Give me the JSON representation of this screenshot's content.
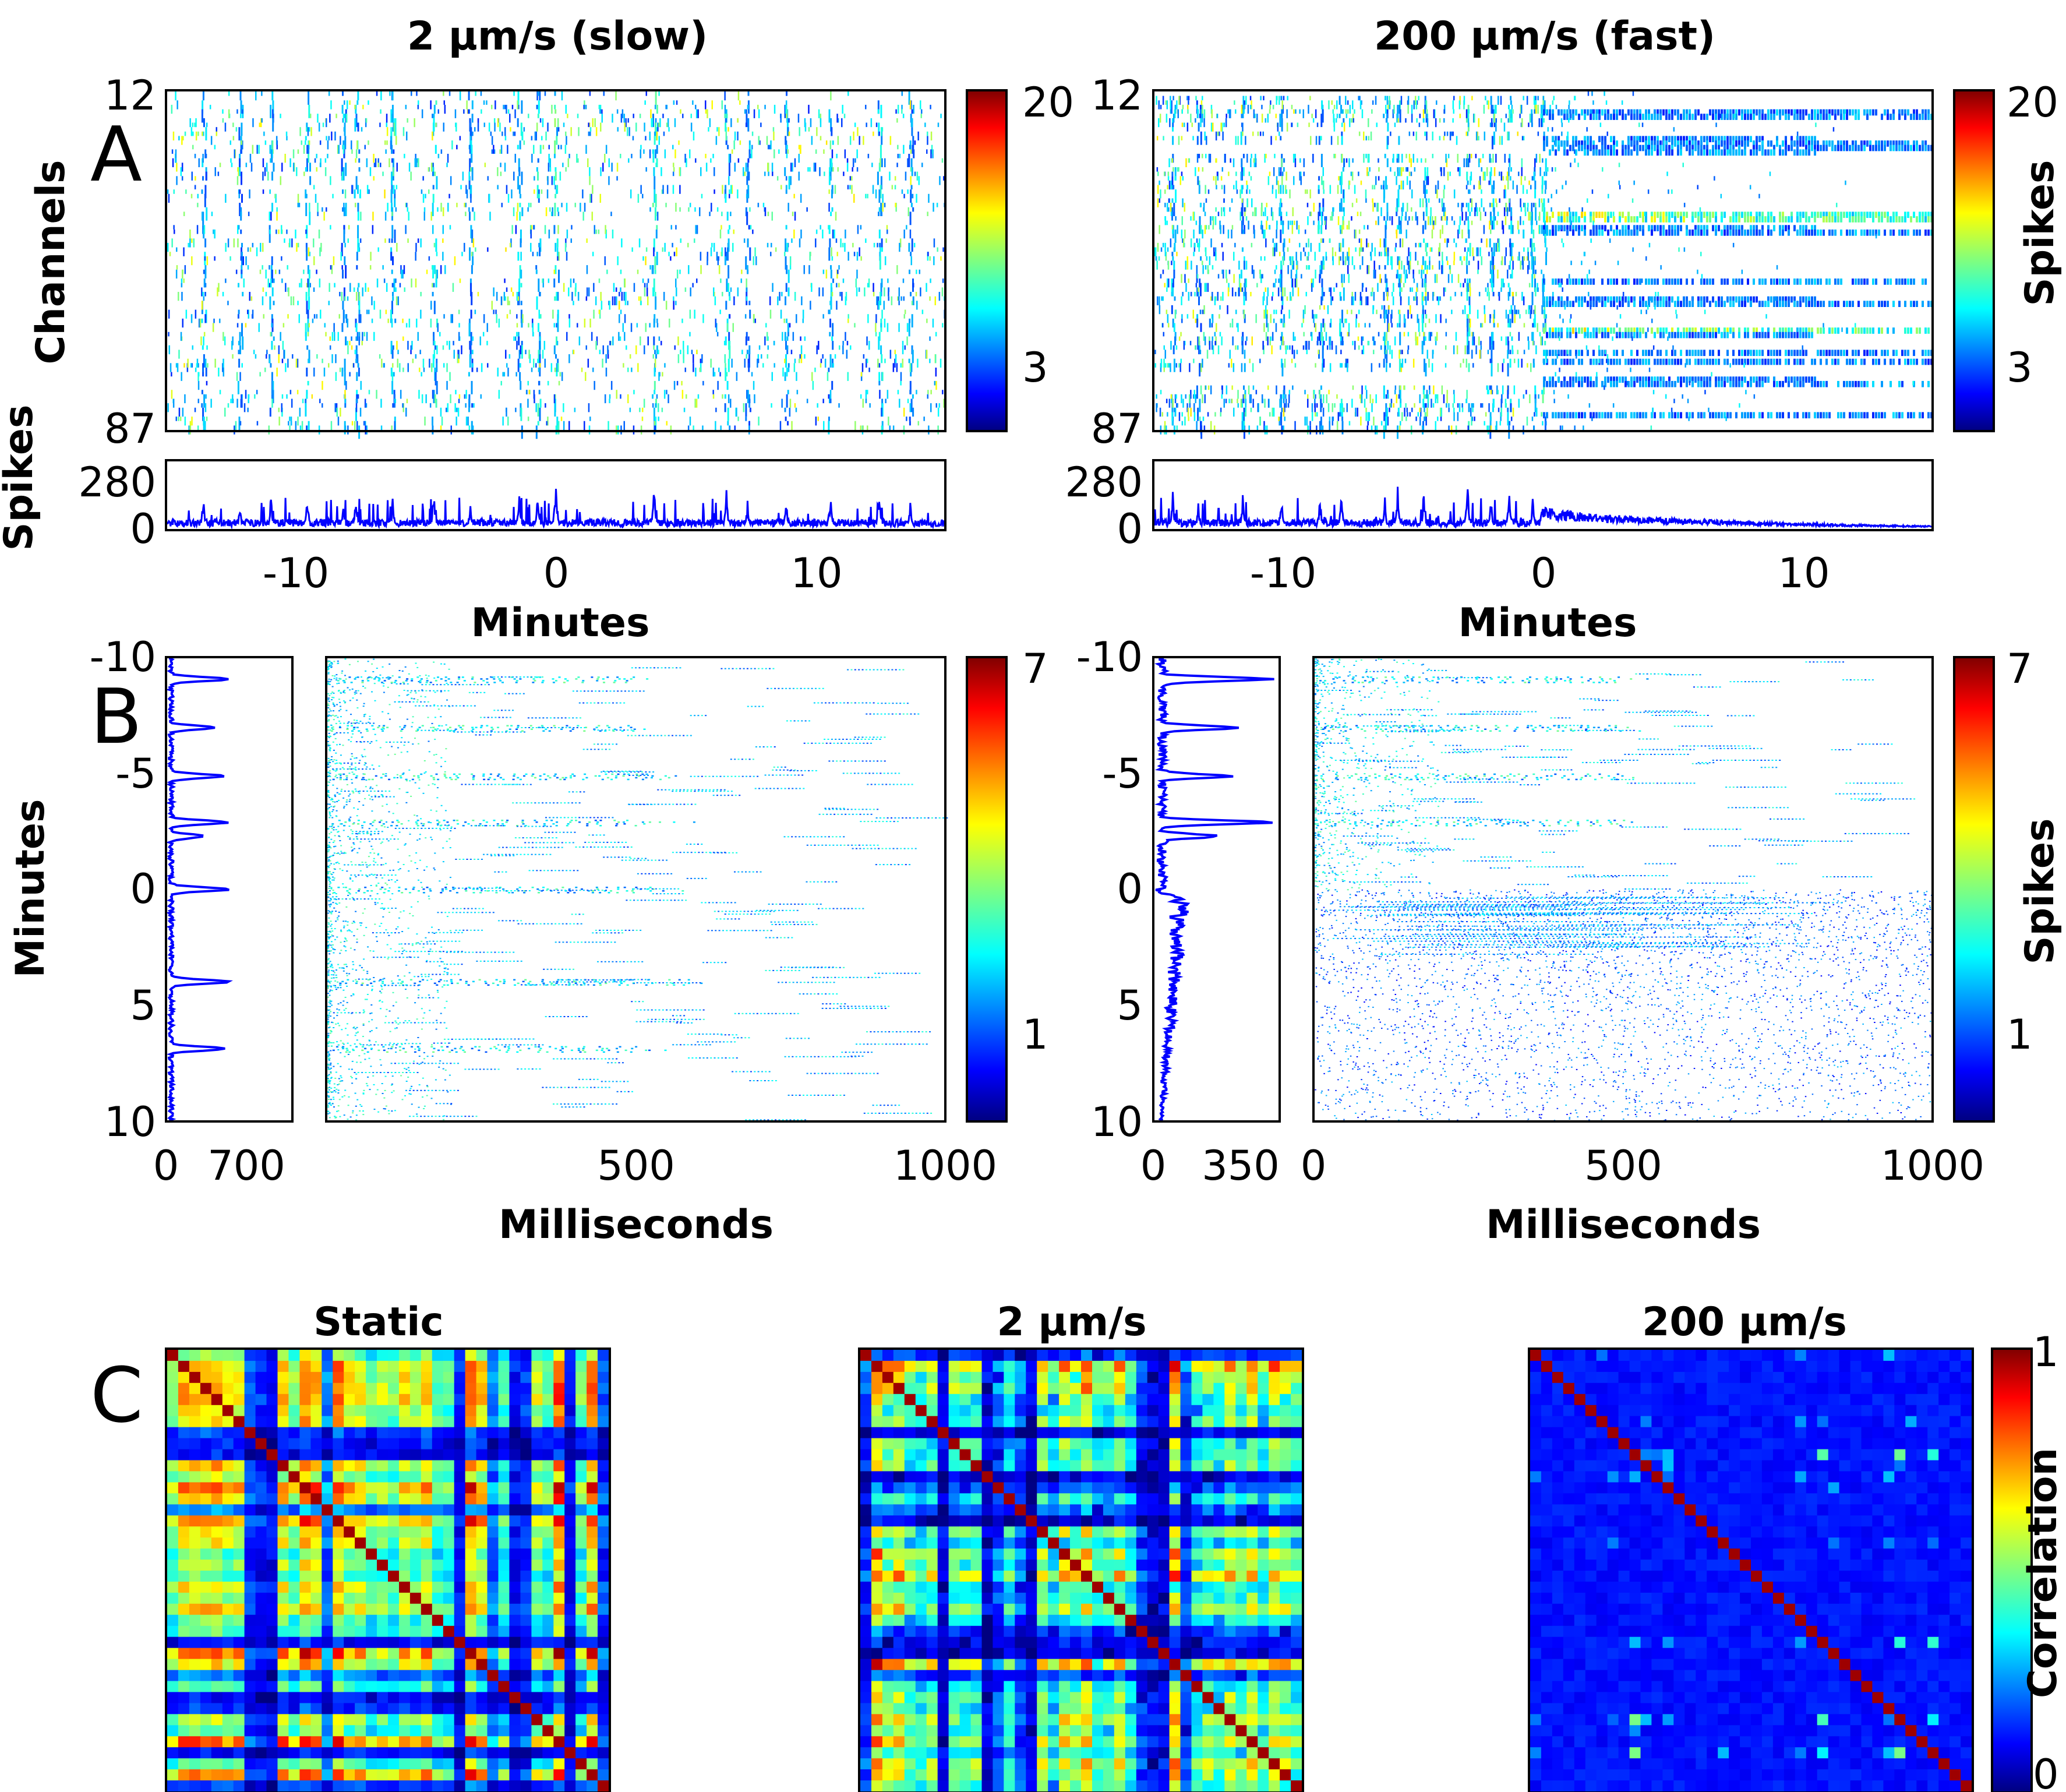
{
  "figure_panels": [
    "A",
    "B",
    "C"
  ],
  "columns": {
    "slow": "2 μm/s (slow)",
    "fast": "200 μm/s (fast)"
  },
  "colormap": "jet",
  "chart_data": [
    {
      "id": "A-slow-raster",
      "type": "heatmap",
      "panel": "A",
      "column": "slow",
      "title": "2 μm/s (slow)",
      "ylabel": "Channels",
      "y_ticks": [
        "12",
        "87"
      ],
      "xlim": [
        -15,
        15
      ],
      "colorbar": {
        "ticks": [
          "20",
          "3"
        ],
        "label": ""
      }
    },
    {
      "id": "A-slow-total",
      "type": "area",
      "panel": "A",
      "column": "slow",
      "ylabel": "Spikes",
      "xlabel": "Minutes",
      "ylim": [
        0,
        280
      ],
      "y_ticks": [
        "280",
        "0"
      ],
      "x_ticks": [
        "-10",
        "0",
        "10"
      ],
      "xlim": [
        -15,
        15
      ],
      "series_color": "#0000ff",
      "bursts": [
        {
          "x": -13.6,
          "y": 150
        },
        {
          "x": -12.2,
          "y": 130
        },
        {
          "x": -11.0,
          "y": 140
        },
        {
          "x": -9.6,
          "y": 175
        },
        {
          "x": -8.2,
          "y": 120
        },
        {
          "x": -7.7,
          "y": 160
        },
        {
          "x": -6.3,
          "y": 140
        },
        {
          "x": -4.7,
          "y": 190
        },
        {
          "x": -3.3,
          "y": 130
        },
        {
          "x": -1.4,
          "y": 175
        },
        {
          "x": -0.7,
          "y": 200
        },
        {
          "x": 0.0,
          "y": 240
        },
        {
          "x": 3.8,
          "y": 210
        },
        {
          "x": 6.6,
          "y": 185
        },
        {
          "x": 7.4,
          "y": 120
        },
        {
          "x": 8.9,
          "y": 140
        },
        {
          "x": 10.6,
          "y": 160
        },
        {
          "x": 12.5,
          "y": 180
        },
        {
          "x": 13.7,
          "y": 120
        }
      ]
    },
    {
      "id": "A-fast-raster",
      "type": "heatmap",
      "panel": "A",
      "column": "fast",
      "title": "200 μm/s (fast)",
      "y_ticks": [
        "12",
        "87"
      ],
      "xlim": [
        -15,
        15
      ],
      "colorbar": {
        "ticks": [
          "20",
          "3"
        ],
        "label": "Spikes"
      }
    },
    {
      "id": "A-fast-total",
      "type": "area",
      "panel": "A",
      "column": "fast",
      "xlabel": "Minutes",
      "ylim": [
        0,
        280
      ],
      "y_ticks": [
        "280",
        "0"
      ],
      "x_ticks": [
        "-10",
        "0",
        "10"
      ],
      "xlim": [
        -15,
        15
      ],
      "series_color": "#0000ff",
      "bursts": [
        {
          "x": -14.3,
          "y": 160
        },
        {
          "x": -13.3,
          "y": 120
        },
        {
          "x": -11.6,
          "y": 150
        },
        {
          "x": -10.1,
          "y": 140
        },
        {
          "x": -8.6,
          "y": 150
        },
        {
          "x": -7.8,
          "y": 180
        },
        {
          "x": -6.1,
          "y": 140
        },
        {
          "x": -5.6,
          "y": 180
        },
        {
          "x": -4.6,
          "y": 195
        },
        {
          "x": -2.9,
          "y": 210
        },
        {
          "x": -2.0,
          "y": 140
        },
        {
          "x": -1.3,
          "y": 160
        },
        {
          "x": -0.4,
          "y": 150
        },
        {
          "x": 0.0,
          "y": 230
        }
      ],
      "post_zero_decay": {
        "start": 70,
        "end": 15
      }
    },
    {
      "id": "B-slow-profile",
      "type": "line",
      "panel": "B",
      "column": "slow",
      "ylabel": "Minutes",
      "ylim": [
        -10,
        10
      ],
      "y_reversed": true,
      "y_ticks": [
        "-10",
        "-5",
        "0",
        "5",
        "10"
      ],
      "x_ticks": [
        "0",
        "700"
      ],
      "xlim": [
        0,
        1100
      ],
      "series_color": "#0000ff",
      "peaks": [
        {
          "t": -9.1,
          "v": 520
        },
        {
          "t": -7.0,
          "v": 380
        },
        {
          "t": -4.9,
          "v": 470
        },
        {
          "t": -2.9,
          "v": 500
        },
        {
          "t": -2.3,
          "v": 300
        },
        {
          "t": 0.0,
          "v": 520
        },
        {
          "t": 4.0,
          "v": 520
        },
        {
          "t": 6.9,
          "v": 480
        }
      ]
    },
    {
      "id": "B-slow-raster",
      "type": "heatmap",
      "panel": "B",
      "column": "slow",
      "xlabel": "Milliseconds",
      "x_ticks": [
        "500",
        "1000"
      ],
      "xlim": [
        0,
        1000
      ],
      "ylim": [
        -10,
        10
      ],
      "burst_rows": [
        -9.1,
        -7.0,
        -4.9,
        -2.9,
        0.0,
        4.0,
        6.9
      ],
      "colorbar": {
        "ticks": [
          "7",
          "1"
        ],
        "label": ""
      }
    },
    {
      "id": "B-fast-profile",
      "type": "line",
      "panel": "B",
      "column": "fast",
      "ylim": [
        -10,
        10
      ],
      "y_reversed": true,
      "y_ticks": [
        "-10",
        "-5",
        "0",
        "5",
        "10"
      ],
      "x_ticks": [
        "0",
        "350"
      ],
      "xlim": [
        0,
        550
      ],
      "series_color": "#0000ff",
      "peaks": [
        {
          "t": -9.1,
          "v": 480
        },
        {
          "t": -7.0,
          "v": 330
        },
        {
          "t": -4.9,
          "v": 300
        },
        {
          "t": -2.9,
          "v": 480
        },
        {
          "t": -2.3,
          "v": 250
        }
      ],
      "post_zero_level": {
        "start": 110,
        "end": 20
      }
    },
    {
      "id": "B-fast-raster",
      "type": "heatmap",
      "panel": "B",
      "column": "fast",
      "xlabel": "Milliseconds",
      "x_ticks": [
        "0",
        "500",
        "1000"
      ],
      "xlim": [
        0,
        1000
      ],
      "ylim": [
        -10,
        10
      ],
      "burst_rows": [
        -9.1,
        -7.0,
        -4.9,
        -2.9
      ],
      "colorbar": {
        "ticks": [
          "7",
          "1"
        ],
        "label": "Spikes"
      }
    },
    {
      "id": "C-static",
      "type": "heatmap",
      "panel": "C",
      "title": "Static",
      "matrix_size": 40
    },
    {
      "id": "C-slow",
      "type": "heatmap",
      "panel": "C",
      "title": "2 μm/s",
      "matrix_size": 40
    },
    {
      "id": "C-fast",
      "type": "heatmap",
      "panel": "C",
      "title": "200 μm/s",
      "matrix_size": 40,
      "colorbar": {
        "ticks": [
          "1",
          "0"
        ],
        "label": "Correlation"
      }
    }
  ]
}
